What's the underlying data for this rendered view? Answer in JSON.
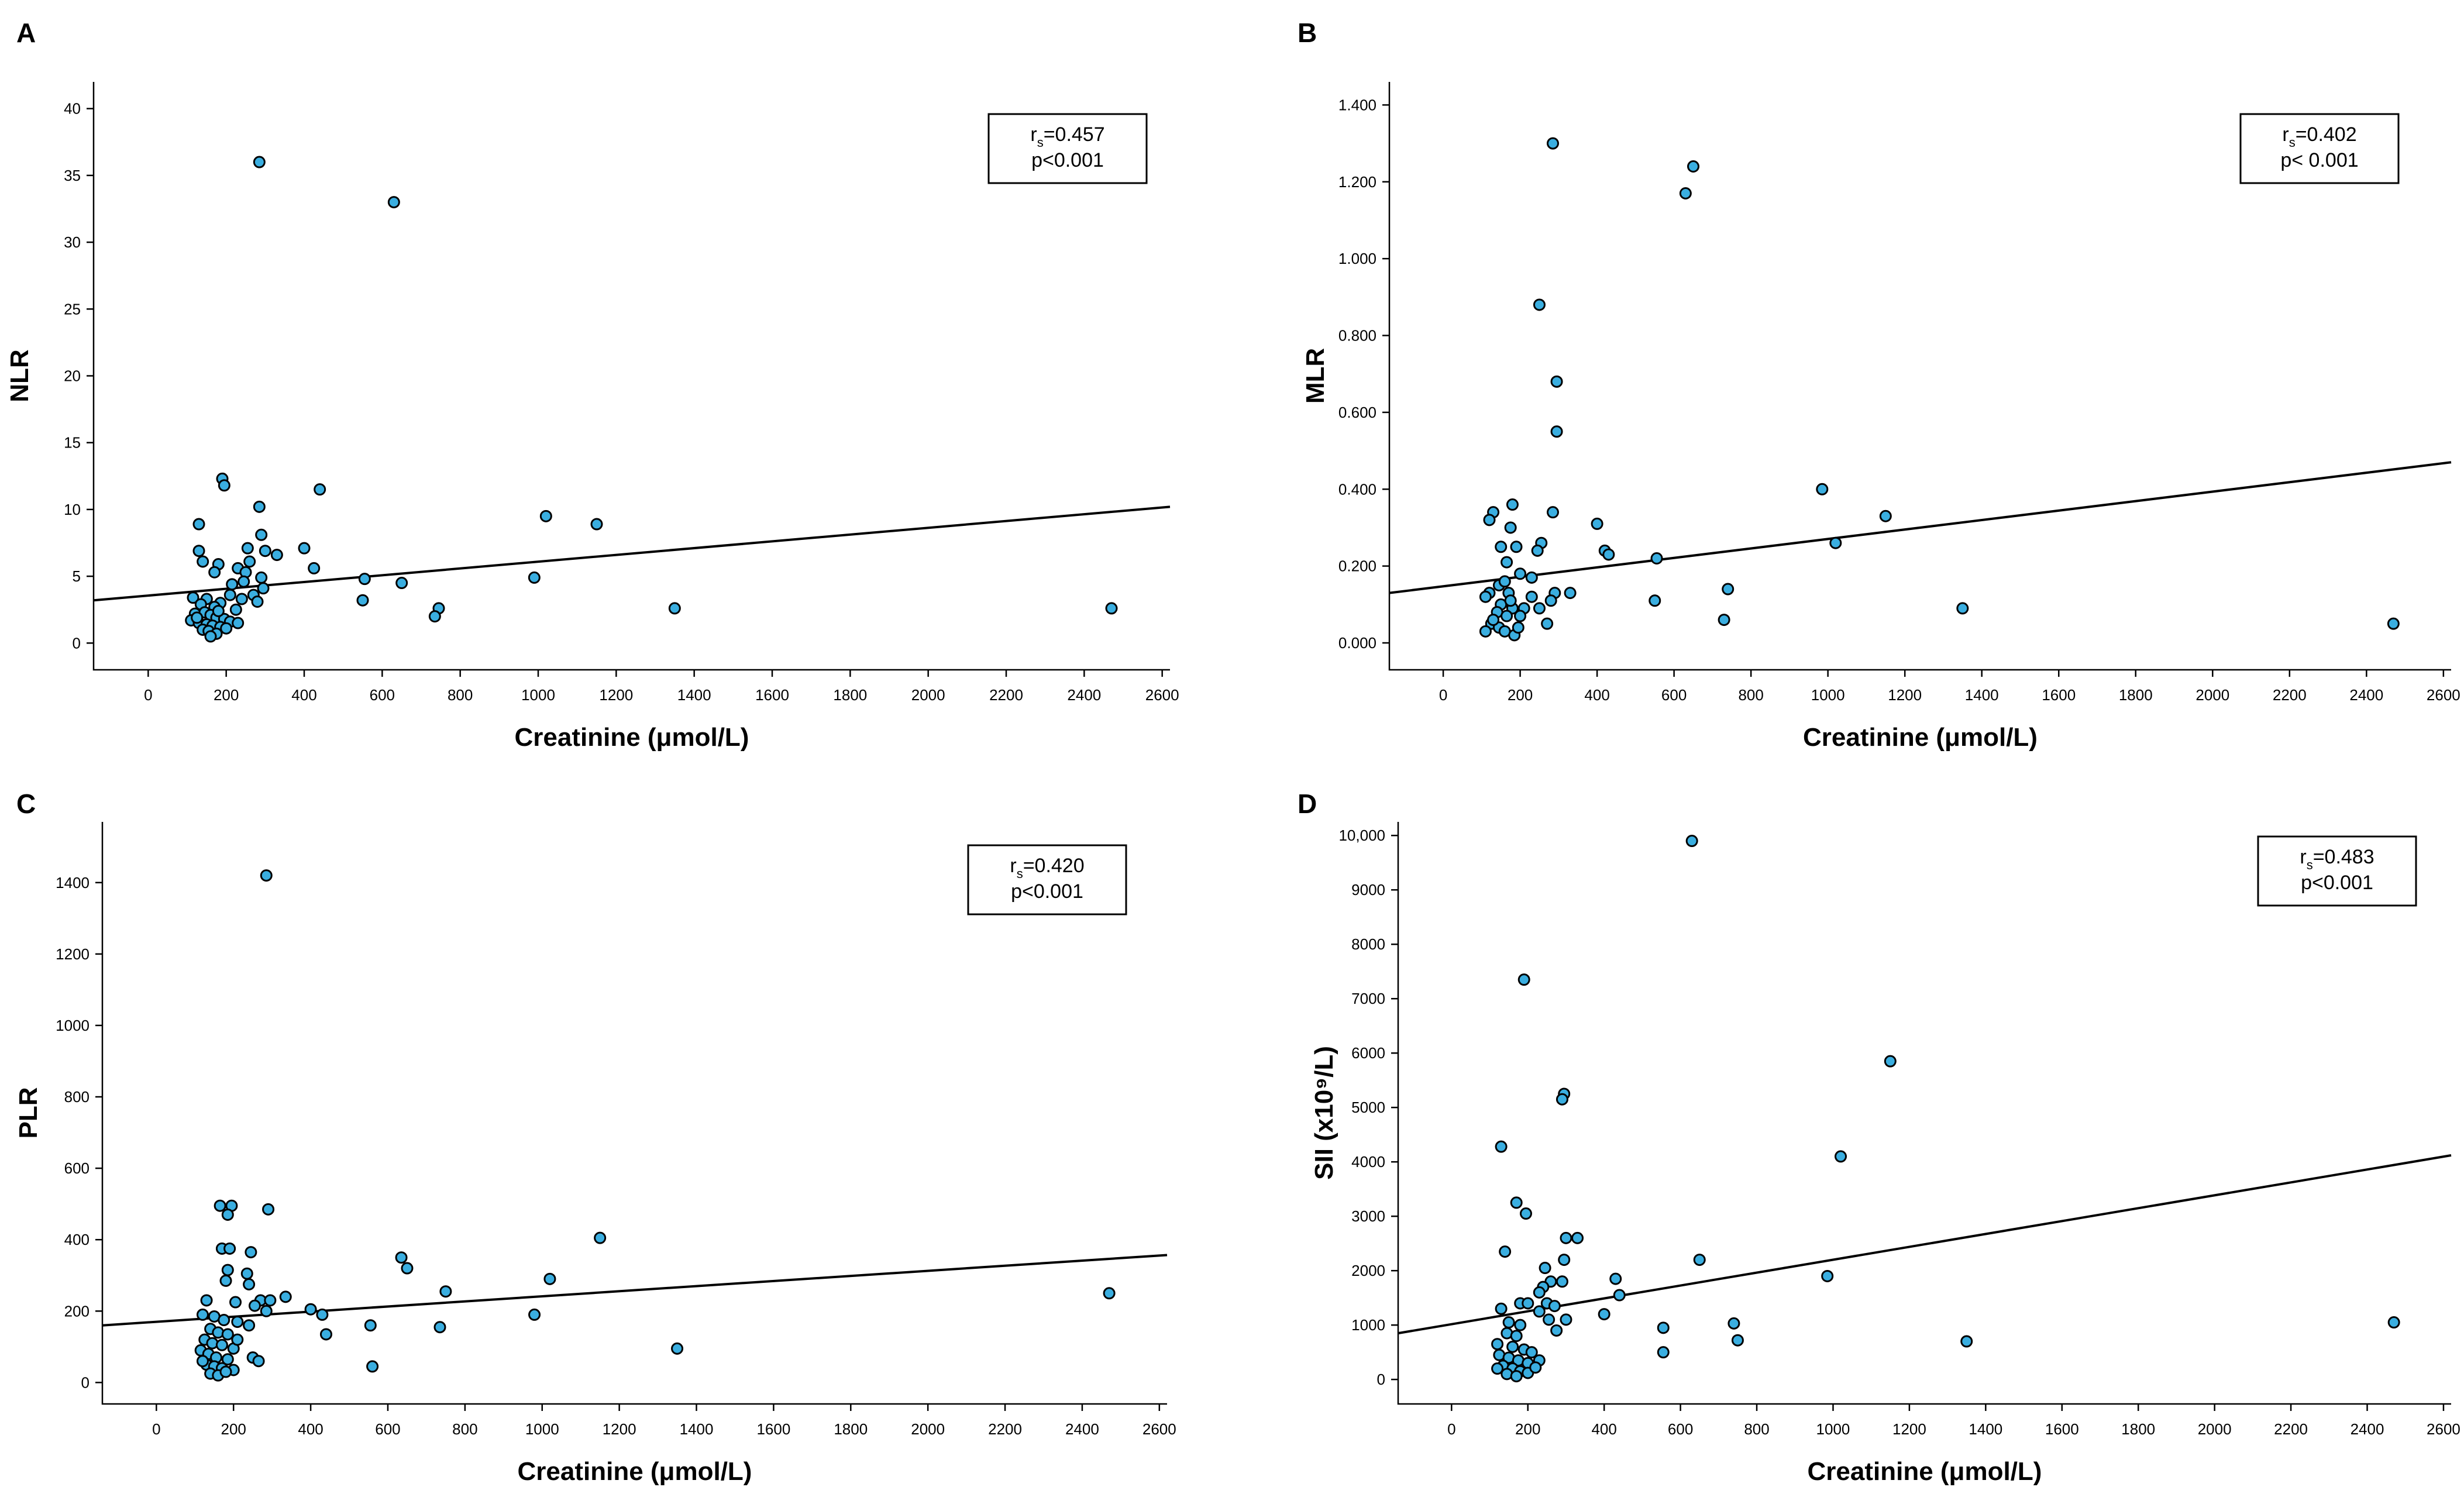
{
  "chart_data": [
    {
      "panel": "A",
      "type": "scatter",
      "xlabel": "Creatinine (μmol/L)",
      "ylabel": "NLR",
      "xlim": [
        -140,
        2620
      ],
      "ylim": [
        -2,
        42
      ],
      "xticks": [
        0,
        200,
        400,
        600,
        800,
        1000,
        1200,
        1400,
        1600,
        1800,
        2000,
        2200,
        2400,
        2600
      ],
      "xtick_labels": [
        "0",
        "200",
        "400",
        "600",
        "800",
        "1000",
        "1200",
        "1400",
        "1600",
        "1800",
        "2000",
        "2200",
        "2400",
        "2600"
      ],
      "yticks": [
        0,
        5,
        10,
        15,
        20,
        25,
        30,
        35,
        40
      ],
      "ytick_labels": [
        "0",
        "5",
        "10",
        "15",
        "20",
        "25",
        "30",
        "35",
        "40"
      ],
      "stats": {
        "r_main": "r",
        "r_sub": "s",
        "r_value": "=0.457",
        "p_text": "p<0.001"
      },
      "fit_line": {
        "x": [
          -140,
          2620
        ],
        "y": [
          3.2,
          10.2
        ]
      },
      "points": [
        [
          285,
          36
        ],
        [
          630,
          33
        ],
        [
          190,
          12.3
        ],
        [
          195,
          11.8
        ],
        [
          440,
          11.5
        ],
        [
          285,
          10.2
        ],
        [
          1020,
          9.5
        ],
        [
          1150,
          8.9
        ],
        [
          130,
          8.9
        ],
        [
          290,
          8.1
        ],
        [
          130,
          6.9
        ],
        [
          255,
          7.1
        ],
        [
          300,
          6.9
        ],
        [
          330,
          6.6
        ],
        [
          400,
          7.1
        ],
        [
          140,
          6.1
        ],
        [
          180,
          5.9
        ],
        [
          260,
          6.1
        ],
        [
          230,
          5.6
        ],
        [
          250,
          5.3
        ],
        [
          170,
          5.3
        ],
        [
          425,
          5.6
        ],
        [
          555,
          4.8
        ],
        [
          290,
          4.9
        ],
        [
          650,
          4.5
        ],
        [
          990,
          4.9
        ],
        [
          215,
          4.4
        ],
        [
          245,
          4.6
        ],
        [
          270,
          3.6
        ],
        [
          295,
          4.1
        ],
        [
          240,
          3.3
        ],
        [
          280,
          3.1
        ],
        [
          550,
          3.2
        ],
        [
          115,
          3.4
        ],
        [
          150,
          3.3
        ],
        [
          185,
          3.0
        ],
        [
          210,
          3.6
        ],
        [
          135,
          2.9
        ],
        [
          170,
          2.7
        ],
        [
          225,
          2.5
        ],
        [
          1350,
          2.6
        ],
        [
          2470,
          2.6
        ],
        [
          745,
          2.6
        ],
        [
          735,
          2.0
        ],
        [
          120,
          2.2
        ],
        [
          145,
          2.3
        ],
        [
          160,
          2.1
        ],
        [
          175,
          1.9
        ],
        [
          195,
          1.8
        ],
        [
          210,
          1.6
        ],
        [
          230,
          1.5
        ],
        [
          110,
          1.7
        ],
        [
          130,
          1.5
        ],
        [
          150,
          1.4
        ],
        [
          165,
          1.3
        ],
        [
          185,
          1.2
        ],
        [
          140,
          1.0
        ],
        [
          155,
          0.9
        ],
        [
          175,
          0.7
        ],
        [
          160,
          0.5
        ],
        [
          200,
          1.1
        ],
        [
          125,
          1.9
        ],
        [
          180,
          2.4
        ]
      ]
    },
    {
      "panel": "B",
      "type": "scatter",
      "xlabel": "Creatinine (μmol/L)",
      "ylabel": "MLR",
      "xlim": [
        -140,
        2620
      ],
      "ylim": [
        -0.07,
        1.46
      ],
      "xticks": [
        0,
        200,
        400,
        600,
        800,
        1000,
        1200,
        1400,
        1600,
        1800,
        2000,
        2200,
        2400,
        2600
      ],
      "xtick_labels": [
        "0",
        "200",
        "400",
        "600",
        "800",
        "1000",
        "1200",
        "1400",
        "1600",
        "1800",
        "2000",
        "2200",
        "2400",
        "2600"
      ],
      "yticks": [
        0,
        0.2,
        0.4,
        0.6,
        0.8,
        1.0,
        1.2,
        1.4
      ],
      "ytick_labels": [
        "0.000",
        "0.200",
        "0.400",
        "0.600",
        "0.800",
        "1.000",
        "1.200",
        "1.400"
      ],
      "stats": {
        "r_main": "r",
        "r_sub": "s",
        "r_value": "=0.402",
        "p_text": "p< 0.001"
      },
      "fit_line": {
        "x": [
          -140,
          2620
        ],
        "y": [
          0.13,
          0.47
        ]
      },
      "points": [
        [
          285,
          1.3
        ],
        [
          650,
          1.24
        ],
        [
          630,
          1.17
        ],
        [
          250,
          0.88
        ],
        [
          295,
          0.68
        ],
        [
          295,
          0.55
        ],
        [
          180,
          0.36
        ],
        [
          130,
          0.34
        ],
        [
          285,
          0.34
        ],
        [
          120,
          0.32
        ],
        [
          1150,
          0.33
        ],
        [
          985,
          0.4
        ],
        [
          400,
          0.31
        ],
        [
          175,
          0.3
        ],
        [
          255,
          0.26
        ],
        [
          245,
          0.24
        ],
        [
          420,
          0.24
        ],
        [
          430,
          0.23
        ],
        [
          1020,
          0.26
        ],
        [
          150,
          0.25
        ],
        [
          190,
          0.25
        ],
        [
          165,
          0.21
        ],
        [
          555,
          0.22
        ],
        [
          230,
          0.17
        ],
        [
          200,
          0.18
        ],
        [
          145,
          0.15
        ],
        [
          160,
          0.16
        ],
        [
          740,
          0.14
        ],
        [
          120,
          0.13
        ],
        [
          170,
          0.13
        ],
        [
          290,
          0.13
        ],
        [
          330,
          0.13
        ],
        [
          230,
          0.12
        ],
        [
          110,
          0.12
        ],
        [
          280,
          0.11
        ],
        [
          550,
          0.11
        ],
        [
          150,
          0.1
        ],
        [
          1350,
          0.09
        ],
        [
          180,
          0.09
        ],
        [
          210,
          0.09
        ],
        [
          250,
          0.09
        ],
        [
          140,
          0.08
        ],
        [
          165,
          0.07
        ],
        [
          200,
          0.07
        ],
        [
          270,
          0.05
        ],
        [
          730,
          0.06
        ],
        [
          2470,
          0.05
        ],
        [
          125,
          0.05
        ],
        [
          145,
          0.04
        ],
        [
          160,
          0.03
        ],
        [
          185,
          0.02
        ],
        [
          110,
          0.03
        ],
        [
          195,
          0.04
        ],
        [
          130,
          0.06
        ],
        [
          175,
          0.11
        ]
      ]
    },
    {
      "panel": "C",
      "type": "scatter",
      "xlabel": "Creatinine (μmol/L)",
      "ylabel": "PLR",
      "xlim": [
        -140,
        2620
      ],
      "ylim": [
        -60,
        1570
      ],
      "xticks": [
        0,
        200,
        400,
        600,
        800,
        1000,
        1200,
        1400,
        1600,
        1800,
        2000,
        2200,
        2400,
        2600
      ],
      "xtick_labels": [
        "0",
        "200",
        "400",
        "600",
        "800",
        "1000",
        "1200",
        "1400",
        "1600",
        "1800",
        "2000",
        "2200",
        "2400",
        "2600"
      ],
      "yticks": [
        0,
        200,
        400,
        600,
        800,
        1000,
        1200,
        1400
      ],
      "ytick_labels": [
        "0",
        "200",
        "400",
        "600",
        "800",
        "1000",
        "1200",
        "1400"
      ],
      "stats": {
        "r_main": "r",
        "r_sub": "s",
        "r_value": "=0.420",
        "p_text": "p<0.001"
      },
      "fit_line": {
        "x": [
          -140,
          2620
        ],
        "y": [
          160,
          357
        ]
      },
      "points": [
        [
          285,
          1420
        ],
        [
          165,
          495
        ],
        [
          195,
          495
        ],
        [
          290,
          485
        ],
        [
          185,
          470
        ],
        [
          1150,
          405
        ],
        [
          170,
          375
        ],
        [
          190,
          375
        ],
        [
          245,
          365
        ],
        [
          635,
          350
        ],
        [
          650,
          320
        ],
        [
          185,
          315
        ],
        [
          235,
          305
        ],
        [
          1020,
          290
        ],
        [
          180,
          285
        ],
        [
          240,
          275
        ],
        [
          750,
          255
        ],
        [
          2470,
          250
        ],
        [
          335,
          240
        ],
        [
          270,
          230
        ],
        [
          295,
          230
        ],
        [
          205,
          225
        ],
        [
          130,
          230
        ],
        [
          255,
          215
        ],
        [
          400,
          205
        ],
        [
          430,
          190
        ],
        [
          285,
          200
        ],
        [
          150,
          185
        ],
        [
          980,
          190
        ],
        [
          120,
          190
        ],
        [
          175,
          175
        ],
        [
          210,
          170
        ],
        [
          240,
          160
        ],
        [
          555,
          160
        ],
        [
          735,
          155
        ],
        [
          140,
          150
        ],
        [
          160,
          140
        ],
        [
          185,
          135
        ],
        [
          440,
          135
        ],
        [
          125,
          120
        ],
        [
          145,
          110
        ],
        [
          170,
          105
        ],
        [
          200,
          95
        ],
        [
          1350,
          95
        ],
        [
          115,
          90
        ],
        [
          135,
          80
        ],
        [
          155,
          70
        ],
        [
          185,
          65
        ],
        [
          250,
          70
        ],
        [
          265,
          60
        ],
        [
          130,
          50
        ],
        [
          150,
          45
        ],
        [
          170,
          40
        ],
        [
          560,
          45
        ],
        [
          200,
          35
        ],
        [
          140,
          25
        ],
        [
          160,
          20
        ],
        [
          180,
          30
        ],
        [
          120,
          60
        ],
        [
          210,
          120
        ]
      ]
    },
    {
      "panel": "D",
      "type": "scatter",
      "xlabel": "Creatinine (μmol/L)",
      "ylabel": "SII (x10⁹/L)",
      "xlim": [
        -140,
        2620
      ],
      "ylim": [
        -450,
        10250
      ],
      "xticks": [
        0,
        200,
        400,
        600,
        800,
        1000,
        1200,
        1400,
        1600,
        1800,
        2000,
        2200,
        2400,
        2600
      ],
      "xtick_labels": [
        "0",
        "200",
        "400",
        "600",
        "800",
        "1000",
        "1200",
        "1400",
        "1600",
        "1800",
        "2000",
        "2200",
        "2400",
        "2600"
      ],
      "yticks": [
        0,
        1000,
        2000,
        3000,
        4000,
        5000,
        6000,
        7000,
        8000,
        9000,
        10000
      ],
      "ytick_labels": [
        "0",
        "1000",
        "2000",
        "3000",
        "4000",
        "5000",
        "6000",
        "7000",
        "8000",
        "9000",
        "10,000"
      ],
      "stats": {
        "r_main": "r",
        "r_sub": "s",
        "r_value": "=0.483",
        "p_text": "p<0.001"
      },
      "fit_line": {
        "x": [
          -140,
          2620
        ],
        "y": [
          850,
          4120
        ]
      },
      "points": [
        [
          630,
          9900
        ],
        [
          190,
          7350
        ],
        [
          1150,
          5850
        ],
        [
          295,
          5250
        ],
        [
          290,
          5150
        ],
        [
          130,
          4280
        ],
        [
          1020,
          4100
        ],
        [
          170,
          3250
        ],
        [
          195,
          3050
        ],
        [
          300,
          2600
        ],
        [
          330,
          2600
        ],
        [
          140,
          2350
        ],
        [
          295,
          2200
        ],
        [
          650,
          2200
        ],
        [
          245,
          2050
        ],
        [
          985,
          1900
        ],
        [
          430,
          1850
        ],
        [
          260,
          1800
        ],
        [
          290,
          1800
        ],
        [
          240,
          1700
        ],
        [
          230,
          1600
        ],
        [
          440,
          1550
        ],
        [
          180,
          1400
        ],
        [
          200,
          1400
        ],
        [
          250,
          1400
        ],
        [
          270,
          1350
        ],
        [
          130,
          1300
        ],
        [
          230,
          1250
        ],
        [
          400,
          1200
        ],
        [
          255,
          1100
        ],
        [
          300,
          1100
        ],
        [
          150,
          1050
        ],
        [
          180,
          1000
        ],
        [
          740,
          1030
        ],
        [
          2470,
          1050
        ],
        [
          555,
          950
        ],
        [
          275,
          900
        ],
        [
          145,
          850
        ],
        [
          170,
          800
        ],
        [
          750,
          720
        ],
        [
          1350,
          700
        ],
        [
          120,
          650
        ],
        [
          160,
          600
        ],
        [
          190,
          550
        ],
        [
          210,
          500
        ],
        [
          125,
          450
        ],
        [
          150,
          400
        ],
        [
          175,
          350
        ],
        [
          555,
          500
        ],
        [
          230,
          350
        ],
        [
          200,
          300
        ],
        [
          135,
          250
        ],
        [
          160,
          200
        ],
        [
          180,
          150
        ],
        [
          145,
          100
        ],
        [
          170,
          60
        ],
        [
          200,
          120
        ],
        [
          120,
          200
        ],
        [
          220,
          220
        ]
      ]
    }
  ]
}
